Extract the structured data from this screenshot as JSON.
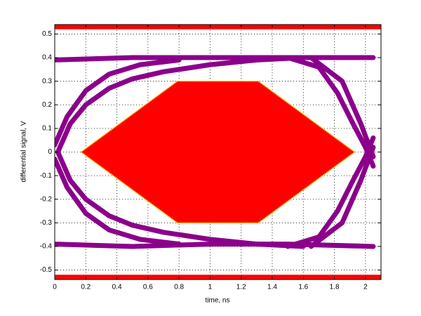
{
  "chart_data": {
    "type": "eye",
    "xlabel": "time, ns",
    "ylabel": "differential signal, V",
    "xlim": [
      0,
      2.1
    ],
    "ylim": [
      -0.54,
      0.54
    ],
    "xticks": [
      0,
      0.2,
      0.4,
      0.6,
      0.8,
      1,
      1.2,
      1.4,
      1.6,
      1.8,
      2
    ],
    "yticks": [
      -0.5,
      -0.4,
      -0.3,
      -0.2,
      -0.1,
      0,
      0.1,
      0.2,
      0.3,
      0.4,
      0.5
    ],
    "grid": true,
    "limit_color": "#ff0000",
    "upper_limit": 0.52,
    "lower_limit": -0.52,
    "mask_color": "#ff0000",
    "mask_edge_color": "#ffb000",
    "mask": {
      "x": [
        0.17,
        0.79,
        1.31,
        1.93,
        1.31,
        0.79
      ],
      "values": [
        0,
        0.3,
        0.3,
        0,
        -0.3,
        -0.3
      ]
    },
    "trace_color": "#8b008b",
    "traces": [
      {
        "x": [
          0,
          0.5,
          1.0,
          1.5,
          2.05
        ],
        "values": [
          0.39,
          0.4,
          0.4,
          0.4,
          0.4
        ]
      },
      {
        "x": [
          0,
          0.5,
          1.0,
          1.5,
          2.05
        ],
        "values": [
          -0.39,
          -0.4,
          -0.39,
          -0.39,
          -0.4
        ]
      },
      {
        "x": [
          0.02,
          0.1,
          0.2,
          0.35,
          0.5,
          0.7,
          1.0,
          1.3,
          1.6
        ],
        "values": [
          0.0,
          0.12,
          0.2,
          0.27,
          0.31,
          0.34,
          0.37,
          0.39,
          0.4
        ]
      },
      {
        "x": [
          0.02,
          0.1,
          0.2,
          0.35,
          0.5,
          0.7,
          1.0,
          1.3,
          1.6
        ],
        "values": [
          0.0,
          -0.12,
          -0.2,
          -0.27,
          -0.31,
          -0.34,
          -0.37,
          -0.39,
          -0.4
        ]
      },
      {
        "x": [
          0,
          0.08,
          0.2,
          0.35,
          0.55,
          0.8
        ],
        "values": [
          0.03,
          0.15,
          0.26,
          0.33,
          0.37,
          0.39
        ]
      },
      {
        "x": [
          0,
          0.08,
          0.2,
          0.35,
          0.55,
          0.8
        ],
        "values": [
          -0.03,
          -0.15,
          -0.26,
          -0.33,
          -0.37,
          -0.39
        ]
      },
      {
        "x": [
          1.5,
          1.7,
          1.82,
          1.92,
          2.0,
          2.05
        ],
        "values": [
          0.4,
          0.36,
          0.25,
          0.12,
          0.02,
          -0.06
        ]
      },
      {
        "x": [
          1.5,
          1.7,
          1.82,
          1.92,
          2.0,
          2.05
        ],
        "values": [
          -0.4,
          -0.36,
          -0.25,
          -0.12,
          -0.02,
          0.06
        ]
      },
      {
        "x": [
          1.65,
          1.85,
          1.97,
          2.05
        ],
        "values": [
          0.4,
          0.3,
          0.12,
          -0.02
        ]
      },
      {
        "x": [
          1.65,
          1.85,
          1.97,
          2.05
        ],
        "values": [
          -0.4,
          -0.3,
          -0.12,
          0.02
        ]
      }
    ]
  }
}
